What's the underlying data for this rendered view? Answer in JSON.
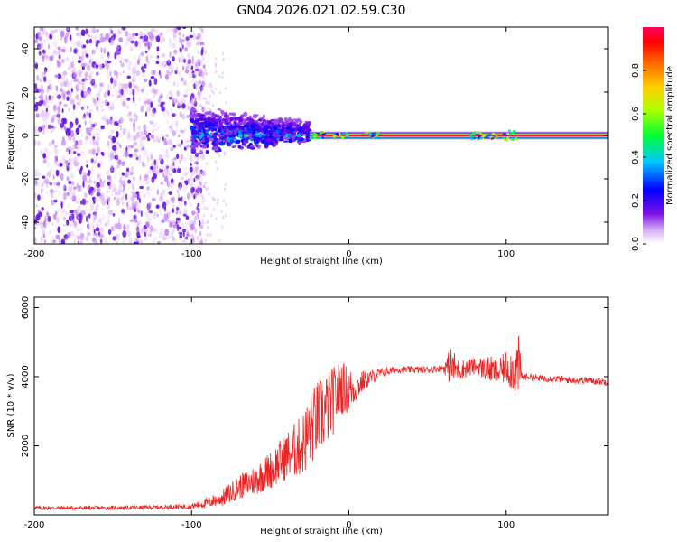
{
  "figure_title": "GN04.2026.021.02.59.C30",
  "colors": {
    "snr_line": "#ee2222",
    "spectral_dot": "#6a1ae8",
    "frame": "#000000"
  },
  "chart_data": [
    {
      "type": "heatmap",
      "panel": "spectrogram",
      "xlabel": "Height of straight line (km)",
      "ylabel": "Frequency (Hz)",
      "xlim": [
        -200,
        165
      ],
      "ylim": [
        -50,
        50
      ],
      "xticks": [
        -200,
        -100,
        0,
        100
      ],
      "yticks": [
        -40,
        -20,
        0,
        20,
        40
      ],
      "colorbar": {
        "label": "Normalized spectral amplitude",
        "range": [
          0,
          1
        ],
        "ticks": [
          0.0,
          0.2,
          0.4,
          0.6,
          0.8
        ],
        "tick_labels": [
          "0.0",
          "0.2",
          "0.4",
          "0.6",
          "0.8"
        ],
        "colormap": [
          "#ffffff",
          "#c98cf2",
          "#6a00e6",
          "#0000ff",
          "#00c8ff",
          "#00ff33",
          "#ccff00",
          "#ffd000",
          "#ff6600",
          "#ff0000",
          "#ff0066"
        ]
      },
      "regions": [
        {
          "x": [
            -200,
            -100
          ],
          "freq_spread_hz": 50,
          "amplitude": 0.15,
          "description": "noise"
        },
        {
          "x": [
            -100,
            -25
          ],
          "freq_spread_hz": 12,
          "amplitude": 0.35
        },
        {
          "x": [
            -25,
            165
          ],
          "center_freq_hz": 0,
          "amplitude": 0.95
        }
      ]
    },
    {
      "type": "line",
      "panel": "snr",
      "xlabel": "Height of straight line (km)",
      "ylabel": "SNR (10 * v/v)",
      "xlim": [
        -200,
        165
      ],
      "ylim": [
        0,
        6300
      ],
      "xticks": [
        -200,
        -100,
        0,
        100
      ],
      "yticks": [
        2000,
        4000,
        6000
      ],
      "series": [
        {
          "name": "SNR",
          "x": [
            -200,
            -150,
            -120,
            -100,
            -90,
            -80,
            -70,
            -60,
            -50,
            -40,
            -30,
            -25,
            -20,
            -15,
            -10,
            -5,
            0,
            5,
            10,
            15,
            20,
            25,
            30,
            40,
            50,
            60,
            65,
            70,
            80,
            90,
            95,
            100,
            105,
            108,
            110,
            112,
            115,
            120,
            130,
            140,
            150,
            165
          ],
          "values": [
            200,
            200,
            220,
            250,
            350,
            500,
            800,
            1000,
            1300,
            1700,
            2000,
            2400,
            2800,
            3000,
            3300,
            3700,
            3600,
            3700,
            3900,
            4000,
            4100,
            4150,
            4200,
            4200,
            4200,
            4250,
            4300,
            4200,
            4300,
            4200,
            4100,
            4300,
            4200,
            4300,
            4000,
            4000,
            4000,
            3950,
            3950,
            3900,
            3900,
            3850
          ],
          "noise_amplitude": [
            60,
            60,
            60,
            80,
            150,
            250,
            350,
            450,
            550,
            700,
            900,
            1100,
            1100,
            1100,
            1000,
            800,
            700,
            400,
            300,
            200,
            150,
            120,
            100,
            100,
            100,
            100,
            600,
            300,
            250,
            400,
            350,
            500,
            700,
            900,
            150,
            100,
            100,
            100,
            100,
            100,
            100,
            100
          ]
        }
      ]
    }
  ]
}
